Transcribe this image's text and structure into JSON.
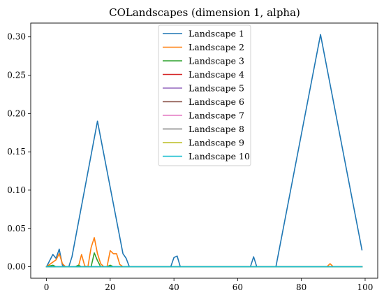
{
  "chart_data": {
    "type": "line",
    "title": "COLandscapes (dimension 1, alpha)",
    "xlabel": "",
    "ylabel": "",
    "xlim": [
      -4.95,
      103.95
    ],
    "ylim": [
      -0.015,
      0.318
    ],
    "xticks": [
      0,
      20,
      40,
      60,
      80,
      100
    ],
    "xtick_labels": [
      "0",
      "20",
      "40",
      "60",
      "80",
      "100"
    ],
    "yticks": [
      0.0,
      0.05,
      0.1,
      0.15,
      0.2,
      0.25,
      0.3
    ],
    "ytick_labels": [
      "0.00",
      "0.05",
      "0.10",
      "0.15",
      "0.20",
      "0.25",
      "0.30"
    ],
    "grid": false,
    "legend_position": "upper-center",
    "series": [
      {
        "name": "Landscape 1",
        "color": "#1f77b4",
        "points": [
          [
            0,
            0
          ],
          [
            2,
            0.016
          ],
          [
            3,
            0.011
          ],
          [
            4,
            0.023
          ],
          [
            5,
            0.002
          ],
          [
            6,
            0
          ],
          [
            7,
            0
          ],
          [
            8,
            0.013
          ],
          [
            16,
            0.19
          ],
          [
            24,
            0.017
          ],
          [
            25,
            0.011
          ],
          [
            26,
            0
          ],
          [
            39,
            0
          ],
          [
            40,
            0.012
          ],
          [
            41,
            0.014
          ],
          [
            42,
            0
          ],
          [
            64,
            0
          ],
          [
            65,
            0.013
          ],
          [
            66,
            0
          ],
          [
            72,
            0
          ],
          [
            86,
            0.303
          ],
          [
            99,
            0.022
          ]
        ]
      },
      {
        "name": "Landscape 2",
        "color": "#ff7f0e",
        "points": [
          [
            0,
            0
          ],
          [
            3,
            0.009
          ],
          [
            4,
            0.017
          ],
          [
            5,
            0.004
          ],
          [
            6,
            0
          ],
          [
            10,
            0
          ],
          [
            11,
            0.016
          ],
          [
            12,
            0.001
          ],
          [
            13,
            0
          ],
          [
            14,
            0.025
          ],
          [
            15,
            0.038
          ],
          [
            16,
            0.017
          ],
          [
            17,
            0.004
          ],
          [
            18,
            0
          ],
          [
            19,
            0
          ],
          [
            20,
            0.021
          ],
          [
            21,
            0.017
          ],
          [
            22,
            0.017
          ],
          [
            23,
            0.003
          ],
          [
            24,
            0
          ],
          [
            88,
            0
          ],
          [
            89,
            0.004
          ],
          [
            90,
            0
          ],
          [
            99,
            0
          ]
        ]
      },
      {
        "name": "Landscape 3",
        "color": "#2ca02c",
        "points": [
          [
            0,
            0
          ],
          [
            2,
            0.002
          ],
          [
            3,
            0
          ],
          [
            9,
            0
          ],
          [
            10,
            0.002
          ],
          [
            11,
            0
          ],
          [
            14,
            0
          ],
          [
            15,
            0.018
          ],
          [
            16,
            0.008
          ],
          [
            17,
            0
          ],
          [
            19,
            0
          ],
          [
            20,
            0.002
          ],
          [
            21,
            0
          ],
          [
            99,
            0
          ]
        ]
      },
      {
        "name": "Landscape 4",
        "color": "#d62728",
        "points": [
          [
            0,
            0
          ],
          [
            99,
            0
          ]
        ]
      },
      {
        "name": "Landscape 5",
        "color": "#9467bd",
        "points": [
          [
            0,
            0
          ],
          [
            99,
            0
          ]
        ]
      },
      {
        "name": "Landscape 6",
        "color": "#8c564b",
        "points": [
          [
            0,
            0
          ],
          [
            99,
            0
          ]
        ]
      },
      {
        "name": "Landscape 7",
        "color": "#e377c2",
        "points": [
          [
            0,
            0
          ],
          [
            99,
            0
          ]
        ]
      },
      {
        "name": "Landscape 8",
        "color": "#7f7f7f",
        "points": [
          [
            0,
            0
          ],
          [
            99,
            0
          ]
        ]
      },
      {
        "name": "Landscape 9",
        "color": "#bcbd22",
        "points": [
          [
            0,
            0
          ],
          [
            99,
            0
          ]
        ]
      },
      {
        "name": "Landscape 10",
        "color": "#17becf",
        "points": [
          [
            0,
            0
          ],
          [
            99,
            0
          ]
        ]
      }
    ]
  }
}
